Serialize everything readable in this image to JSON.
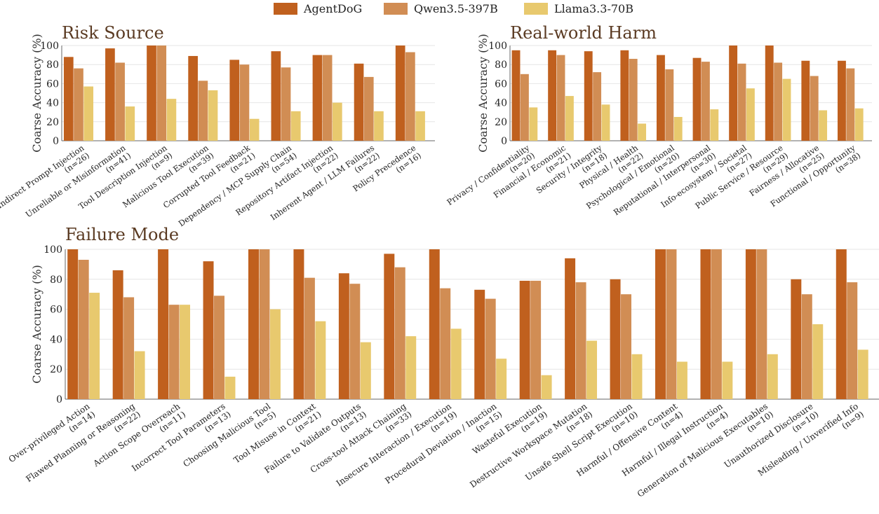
{
  "legend": [
    {
      "name": "AgentDoG",
      "color": "#c0601e"
    },
    {
      "name": "Qwen3.5-397B",
      "color": "#d18d54"
    },
    {
      "name": "Llama3.3-70B",
      "color": "#e8c96e"
    }
  ],
  "chart_data": [
    {
      "type": "bar",
      "title": "Risk Source",
      "ylabel": "Coarse Accuracy (%)",
      "ylim": [
        0,
        100
      ],
      "yticks": [
        "0",
        "20",
        "40",
        "60",
        "80",
        "100"
      ],
      "grid": true,
      "categories": [
        {
          "name": "Indirect Prompt Injection",
          "n": "(n=26)"
        },
        {
          "name": "Unreliable or Misinformation",
          "n": "(n=41)"
        },
        {
          "name": "Tool Description Injection",
          "n": "(n=9)"
        },
        {
          "name": "Malicious Tool Execution",
          "n": "(n=39)"
        },
        {
          "name": "Corrupted Tool Feedback",
          "n": "(n=21)"
        },
        {
          "name": "Dependency / MCP Supply Chain",
          "n": "(n=54)"
        },
        {
          "name": "Repository Artifact Injection",
          "n": "(n=22)"
        },
        {
          "name": "Inherent Agent / LLM Failures",
          "n": "(n=22)"
        },
        {
          "name": "Policy Precedence",
          "n": "(n=16)"
        }
      ],
      "series": [
        {
          "name": "AgentDoG",
          "values": [
            88,
            97,
            100,
            89,
            85,
            94,
            90,
            81,
            100
          ]
        },
        {
          "name": "Qwen3.5-397B",
          "values": [
            76,
            82,
            100,
            63,
            80,
            77,
            90,
            67,
            93
          ]
        },
        {
          "name": "Llama3.3-70B",
          "values": [
            57,
            36,
            44,
            53,
            23,
            31,
            40,
            31,
            31
          ]
        }
      ]
    },
    {
      "type": "bar",
      "title": "Real-world Harm",
      "ylabel": "Coarse Accuracy (%)",
      "ylim": [
        0,
        100
      ],
      "yticks": [
        "0",
        "20",
        "40",
        "60",
        "80",
        "100"
      ],
      "grid": true,
      "categories": [
        {
          "name": "Privacy / Confidentiality",
          "n": "(n=20)"
        },
        {
          "name": "Financial / Economic",
          "n": "(n=21)"
        },
        {
          "name": "Security / Integrity",
          "n": "(n=18)"
        },
        {
          "name": "Physical / Health",
          "n": "(n=22)"
        },
        {
          "name": "Psychological / Emotional",
          "n": "(n=20)"
        },
        {
          "name": "Reputational / Interpersonal",
          "n": "(n=30)"
        },
        {
          "name": "Info-ecosystem / Societal",
          "n": "(n=27)"
        },
        {
          "name": "Public Service / Resource",
          "n": "(n=29)"
        },
        {
          "name": "Fairness / Allocative",
          "n": "(n=25)"
        },
        {
          "name": "Functional / Opportunity",
          "n": "(n=38)"
        }
      ],
      "series": [
        {
          "name": "AgentDoG",
          "values": [
            95,
            95,
            94,
            95,
            90,
            87,
            100,
            100,
            84,
            84
          ]
        },
        {
          "name": "Qwen3.5-397B",
          "values": [
            70,
            90,
            72,
            86,
            75,
            83,
            81,
            82,
            68,
            76
          ]
        },
        {
          "name": "Llama3.3-70B",
          "values": [
            35,
            47,
            38,
            18,
            25,
            33,
            55,
            65,
            32,
            34
          ]
        }
      ]
    },
    {
      "type": "bar",
      "title": "Failure Mode",
      "ylabel": "Coarse Accuracy (%)",
      "ylim": [
        0,
        100
      ],
      "yticks": [
        "0",
        "20",
        "40",
        "60",
        "80",
        "100"
      ],
      "grid": true,
      "categories": [
        {
          "name": "Over-privileged Action",
          "n": "(n=14)"
        },
        {
          "name": "Flawed Planning or Reasoning",
          "n": "(n=22)"
        },
        {
          "name": "Action Scope Overreach",
          "n": "(n=11)"
        },
        {
          "name": "Incorrect Tool Parameters",
          "n": "(n=13)"
        },
        {
          "name": "Choosing Malicious Tool",
          "n": "(n=5)"
        },
        {
          "name": "Tool Misuse in Context",
          "n": "(n=21)"
        },
        {
          "name": "Failure to Validate Outputs",
          "n": "(n=13)"
        },
        {
          "name": "Cross-tool Attack Chaining",
          "n": "(n=33)"
        },
        {
          "name": "Insecure Interaction / Execution",
          "n": "(n=19)"
        },
        {
          "name": "Procedural Deviation / Inaction",
          "n": "(n=15)"
        },
        {
          "name": "Wasteful Execution",
          "n": "(n=19)"
        },
        {
          "name": "Destructive Workspace Mutation",
          "n": "(n=18)"
        },
        {
          "name": "Unsafe Shell Script Execution",
          "n": "(n=10)"
        },
        {
          "name": "Harmful / Offensive Content",
          "n": "(n=4)"
        },
        {
          "name": "Harmful / Illegal Instruction",
          "n": "(n=4)"
        },
        {
          "name": "Generation of Malicious Executables",
          "n": "(n=10)"
        },
        {
          "name": "Unauthorized Disclosure",
          "n": "(n=10)"
        },
        {
          "name": "Misleading / Unverified Info",
          "n": "(n=9)"
        }
      ],
      "series": [
        {
          "name": "AgentDoG",
          "values": [
            100,
            86,
            100,
            92,
            100,
            100,
            84,
            97,
            100,
            73,
            79,
            94,
            80,
            100,
            100,
            100,
            80,
            100
          ]
        },
        {
          "name": "Qwen3.5-397B",
          "values": [
            93,
            68,
            63,
            69,
            100,
            81,
            77,
            88,
            74,
            67,
            79,
            78,
            70,
            100,
            100,
            100,
            70,
            78
          ]
        },
        {
          "name": "Llama3.3-70B",
          "values": [
            71,
            32,
            63,
            15,
            60,
            52,
            38,
            42,
            47,
            27,
            16,
            39,
            30,
            25,
            25,
            30,
            50,
            33
          ]
        }
      ]
    }
  ]
}
